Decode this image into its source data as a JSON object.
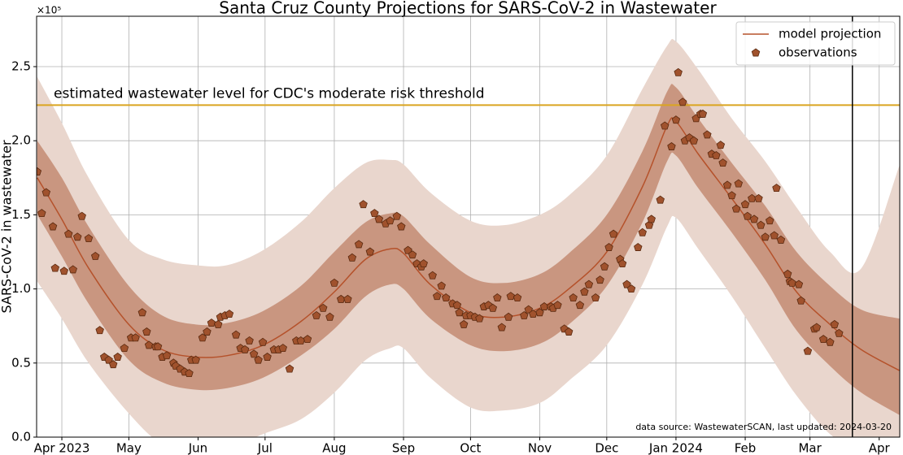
{
  "chart_data": {
    "type": "line",
    "title": "Santa Cruz County Projections for SARS-CoV-2 in Wastewater",
    "y_label": "SARS-CoV-2 in wastewater",
    "y_offset_label": "×10⁵",
    "note": "data source: WastewaterSCAN, last updated: 2024-03-20",
    "xlim": [
      -11.3,
      375.2
    ],
    "ylim": [
      0,
      2.84
    ],
    "xticks": [
      {
        "value": 0,
        "label": "Apr 2023"
      },
      {
        "value": 30,
        "label": "May"
      },
      {
        "value": 61,
        "label": "Jun"
      },
      {
        "value": 91,
        "label": "Jul"
      },
      {
        "value": 122,
        "label": "Aug"
      },
      {
        "value": 153,
        "label": "Sep"
      },
      {
        "value": 183,
        "label": "Oct"
      },
      {
        "value": 214,
        "label": "Nov"
      },
      {
        "value": 244,
        "label": "Dec"
      },
      {
        "value": 275,
        "label": "Jan 2024"
      },
      {
        "value": 306,
        "label": "Feb"
      },
      {
        "value": 335,
        "label": "Mar"
      },
      {
        "value": 366,
        "label": "Apr"
      }
    ],
    "yticks": [
      {
        "value": 0,
        "label": "0.0"
      },
      0.5,
      {
        "value": 1,
        "label": "1.0"
      },
      1.5,
      {
        "value": 2,
        "label": "2.0"
      },
      2.5
    ],
    "grid": true,
    "legend": "upper right",
    "bands": [
      {
        "color": "#e9d6cd",
        "x": [
          -11,
          0,
          12,
          30,
          45,
          60,
          74,
          90,
          107,
          122,
          136,
          147,
          153,
          165,
          183,
          198,
          214,
          227,
          244,
          260,
          271,
          275,
          285,
          300,
          315,
          329,
          344,
          358,
          375
        ],
        "upper": [
          2.43,
          2.12,
          1.75,
          1.33,
          1.2,
          1.16,
          1.16,
          1.26,
          1.45,
          1.68,
          1.85,
          1.87,
          1.84,
          1.65,
          1.46,
          1.43,
          1.5,
          1.63,
          1.9,
          2.35,
          2.64,
          2.67,
          2.48,
          2.15,
          1.86,
          1.55,
          1.25,
          1.14,
          1.83
        ],
        "lower": [
          1.05,
          0.8,
          0.5,
          0.16,
          -0.05,
          -0.1,
          -0.08,
          0.02,
          0.12,
          0.3,
          0.52,
          0.6,
          0.6,
          0.4,
          0.2,
          0.18,
          0.23,
          0.38,
          0.62,
          1.03,
          1.42,
          1.48,
          1.27,
          0.95,
          0.6,
          0.28,
          0.02,
          -0.1,
          -0.2
        ]
      },
      {
        "color": "#c99680",
        "x": [
          -11,
          0,
          12,
          30,
          45,
          60,
          74,
          90,
          107,
          122,
          136,
          147,
          153,
          165,
          183,
          198,
          214,
          227,
          244,
          260,
          271,
          275,
          285,
          300,
          315,
          329,
          344,
          358,
          375
        ],
        "upper": [
          2.0,
          1.75,
          1.42,
          1.02,
          0.82,
          0.76,
          0.77,
          0.85,
          1.02,
          1.25,
          1.45,
          1.51,
          1.49,
          1.3,
          1.08,
          1.04,
          1.1,
          1.24,
          1.5,
          1.93,
          2.33,
          2.36,
          2.15,
          1.85,
          1.56,
          1.25,
          1.02,
          0.86,
          0.8
        ],
        "lower": [
          1.5,
          1.22,
          0.9,
          0.52,
          0.37,
          0.32,
          0.33,
          0.4,
          0.55,
          0.73,
          0.95,
          1.03,
          1.0,
          0.8,
          0.62,
          0.58,
          0.63,
          0.76,
          1.02,
          1.45,
          1.86,
          1.9,
          1.68,
          1.38,
          1.06,
          0.72,
          0.48,
          0.3,
          0.15
        ]
      }
    ],
    "series": [
      {
        "name": "model projection",
        "color": "#b5522b",
        "style": "line",
        "x": [
          -11,
          0,
          12,
          30,
          45,
          60,
          74,
          90,
          107,
          122,
          136,
          147,
          153,
          165,
          183,
          198,
          214,
          227,
          244,
          260,
          271,
          275,
          285,
          300,
          315,
          329,
          344,
          358,
          375
        ],
        "values": [
          1.75,
          1.47,
          1.14,
          0.76,
          0.59,
          0.54,
          0.55,
          0.62,
          0.78,
          0.98,
          1.2,
          1.27,
          1.24,
          1.03,
          0.84,
          0.81,
          0.87,
          1.0,
          1.25,
          1.69,
          2.1,
          2.13,
          1.91,
          1.61,
          1.3,
          0.98,
          0.76,
          0.59,
          0.45
        ]
      },
      {
        "name": "observations",
        "color": "#a0522d",
        "edge_color": "#5a2a10",
        "style": "markers",
        "x": [
          -11,
          -9,
          -7,
          -4,
          -3,
          1,
          3,
          5,
          7,
          9,
          12,
          15,
          17,
          19,
          21,
          23,
          25,
          28,
          31,
          33,
          36,
          38,
          39,
          42,
          43,
          45,
          47,
          50,
          51,
          53,
          55,
          57,
          58,
          60,
          63,
          65,
          67,
          70,
          71,
          73,
          75,
          78,
          80,
          82,
          84,
          86,
          88,
          90,
          92,
          95,
          97,
          99,
          102,
          105,
          107,
          110,
          114,
          117,
          120,
          122,
          125,
          128,
          130,
          133,
          135,
          138,
          140,
          142,
          145,
          147,
          150,
          152,
          155,
          157,
          159,
          161,
          162,
          166,
          168,
          170,
          172,
          175,
          177,
          178,
          180,
          181,
          183,
          185,
          187,
          189,
          191,
          193,
          195,
          197,
          200,
          201,
          204,
          207,
          209,
          211,
          214,
          216,
          219,
          220,
          222,
          225,
          227,
          229,
          232,
          234,
          236,
          239,
          241,
          243,
          245,
          247,
          250,
          251,
          253,
          255,
          258,
          260,
          263,
          264,
          268,
          270,
          273,
          275,
          276,
          278,
          279,
          281,
          283,
          284,
          286,
          287,
          289,
          291,
          293,
          295,
          296,
          298,
          300,
          302,
          303,
          306,
          307,
          309,
          310,
          312,
          313,
          315,
          317,
          319,
          320,
          322,
          325,
          326,
          327,
          330,
          331,
          334,
          337,
          338,
          341,
          344,
          346,
          348
        ],
        "values": [
          1.79,
          1.51,
          1.65,
          1.42,
          1.14,
          1.12,
          1.37,
          1.13,
          1.35,
          1.49,
          1.34,
          1.22,
          0.72,
          0.54,
          0.52,
          0.49,
          0.54,
          0.6,
          0.67,
          0.67,
          0.84,
          0.71,
          0.62,
          0.61,
          0.61,
          0.54,
          0.55,
          0.5,
          0.48,
          0.46,
          0.44,
          0.43,
          0.52,
          0.52,
          0.67,
          0.71,
          0.77,
          0.76,
          0.81,
          0.82,
          0.83,
          0.69,
          0.6,
          0.59,
          0.65,
          0.56,
          0.52,
          0.64,
          0.54,
          0.59,
          0.59,
          0.6,
          0.46,
          0.65,
          0.65,
          0.66,
          0.82,
          0.87,
          0.81,
          1.04,
          0.93,
          0.93,
          1.21,
          1.3,
          1.57,
          1.25,
          1.51,
          1.47,
          1.44,
          1.46,
          1.49,
          1.42,
          1.26,
          1.23,
          1.17,
          1.15,
          1.17,
          1.09,
          0.95,
          1.02,
          0.94,
          0.9,
          0.89,
          0.84,
          0.76,
          0.82,
          0.82,
          0.81,
          0.8,
          0.88,
          0.89,
          0.87,
          0.94,
          0.74,
          0.81,
          0.95,
          0.94,
          0.82,
          0.86,
          0.83,
          0.84,
          0.88,
          0.88,
          0.87,
          0.89,
          0.73,
          0.71,
          0.94,
          0.89,
          0.98,
          1.03,
          0.94,
          1.06,
          1.15,
          1.28,
          1.37,
          1.2,
          1.17,
          1.03,
          1.0,
          1.28,
          1.38,
          1.43,
          1.47,
          1.6,
          2.1,
          1.96,
          2.14,
          2.46,
          2.26,
          2.0,
          2.02,
          2.0,
          2.15,
          2.18,
          2.18,
          2.04,
          1.91,
          1.9,
          1.97,
          1.85,
          1.7,
          1.63,
          1.54,
          1.71,
          1.57,
          1.49,
          1.61,
          1.47,
          1.61,
          1.43,
          1.35,
          1.46,
          1.36,
          1.68,
          1.33,
          1.1,
          1.05,
          1.04,
          1.03,
          0.92,
          0.58,
          0.73,
          0.74,
          0.66,
          0.64,
          0.76,
          0.7
        ]
      }
    ],
    "hline": {
      "value": 2.24,
      "color": "#daa520",
      "label": "estimated wastewater level for CDC's moderate risk threshold",
      "label_color": "#7a5a00"
    },
    "vline": {
      "value": 354,
      "color": "#000000"
    }
  }
}
